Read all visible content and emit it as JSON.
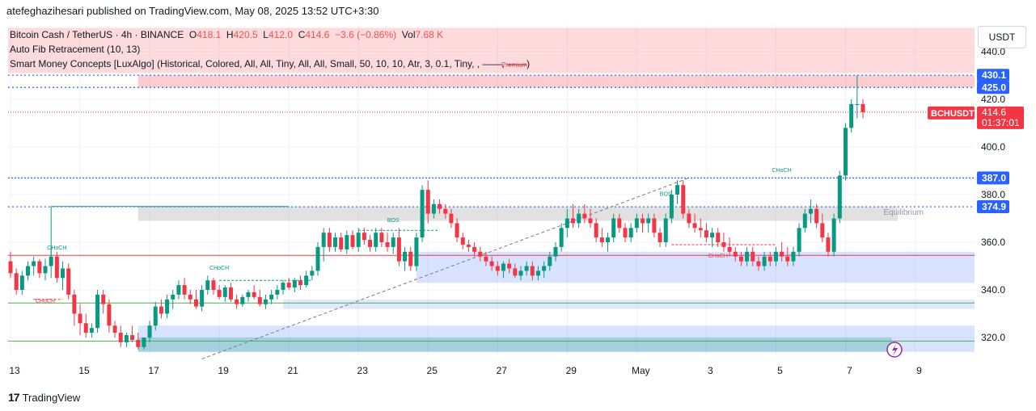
{
  "header": {
    "publisher_line": "atefeghazihesari published on TradingView.com, May 08, 2025 13:52 UTC+3:30"
  },
  "legend": {
    "symbol": "Bitcoin Cash / TetherUS · 4h · BINANCE",
    "o_label": "O",
    "o_value": "418.1",
    "h_label": "H",
    "h_value": "420.5",
    "l_label": "L",
    "l_value": "412.0",
    "c_label": "C",
    "c_value": "414.6",
    "change": "−3.6 (−0.86%)",
    "vol_label": "Vol",
    "vol_value": "7.68 K",
    "indicator1": "Auto Fib Retracement (10, 13)",
    "indicator2": "Smart Money Concepts [LuxAlgo] (Historical, Colored, All, All, Tiny, All, All, Small, 50, 10, 10, Atr, 3, 0.1, Tiny, ",
    "indicator2_tail": ", ——, ——)",
    "indicator2_overlay": "Premium"
  },
  "currency_button": "USDT",
  "footer": {
    "brand": "TradingView",
    "logo_glyph": "17"
  },
  "colors": {
    "up": "#089981",
    "down": "#f23645",
    "blue": "#2962ff",
    "premium": "rgba(242,54,69,0.18)",
    "discount": "rgba(8,153,129,0.25)"
  },
  "chart_data": {
    "type": "candlestick",
    "symbol": "BCHUSDT",
    "interval": "4h",
    "ylim": [
      310,
      450
    ],
    "y_ticks": [
      320,
      340,
      360,
      380,
      400,
      420,
      440
    ],
    "y_tick_labels": [
      "320.0",
      "340.0",
      "360.0",
      "380.0",
      "400.0",
      "420.0",
      "440.0"
    ],
    "x_ticks": [
      {
        "label": "13",
        "idx": 0
      },
      {
        "label": "15",
        "idx": 12
      },
      {
        "label": "17",
        "idx": 24
      },
      {
        "label": "19",
        "idx": 36
      },
      {
        "label": "21",
        "idx": 48
      },
      {
        "label": "23",
        "idx": 60
      },
      {
        "label": "25",
        "idx": 72
      },
      {
        "label": "27",
        "idx": 84
      },
      {
        "label": "29",
        "idx": 96
      },
      {
        "label": "May",
        "idx": 108
      },
      {
        "label": "3",
        "idx": 120
      },
      {
        "label": "5",
        "idx": 132
      },
      {
        "label": "7",
        "idx": 144
      },
      {
        "label": "9",
        "idx": 156
      }
    ],
    "price_labels": [
      {
        "value": 430.1,
        "text": "430.1",
        "kind": "blue"
      },
      {
        "value": 425.0,
        "text": "425.0",
        "kind": "blue"
      },
      {
        "value": 414.6,
        "text": "414.6",
        "kind": "red",
        "countdown": "01:37:01",
        "tag": "BCHUSDT"
      },
      {
        "value": 387.0,
        "text": "387.0",
        "kind": "blue"
      },
      {
        "value": 374.9,
        "text": "374.9",
        "kind": "blue"
      }
    ],
    "annotations": [
      {
        "text": "CHoCH",
        "idx": 8,
        "price": 357,
        "kind": "up"
      },
      {
        "text": "CHoCH",
        "idx": 36,
        "price": 348.5,
        "kind": "up"
      },
      {
        "text": "BOS",
        "idx": 66,
        "price": 368.5,
        "kind": "up"
      },
      {
        "text": "BOS",
        "idx": 113,
        "price": 379.5,
        "kind": "up"
      },
      {
        "text": "CHoCH",
        "idx": 133,
        "price": 389.5,
        "kind": "up"
      },
      {
        "text": "CHoCH",
        "idx": 6,
        "price": 334.5,
        "kind": "down"
      },
      {
        "text": "CHoCH",
        "idx": 122,
        "price": 353.5,
        "kind": "down"
      },
      {
        "text": "Equilibrium",
        "idx": 154,
        "price": 371.5,
        "kind": "gray"
      }
    ],
    "ohlc": [
      [
        352,
        356,
        345,
        347
      ],
      [
        347,
        349,
        338,
        340
      ],
      [
        340,
        348,
        338,
        346
      ],
      [
        346,
        352,
        344,
        350
      ],
      [
        350,
        354,
        346,
        352
      ],
      [
        352,
        353,
        345,
        347
      ],
      [
        347,
        353,
        344,
        350
      ],
      [
        350,
        358,
        345,
        354
      ],
      [
        354,
        356,
        343,
        345
      ],
      [
        345,
        352,
        340,
        349
      ],
      [
        349,
        351,
        336,
        338
      ],
      [
        338,
        340,
        325,
        330
      ],
      [
        330,
        334,
        321,
        326
      ],
      [
        326,
        330,
        320,
        322
      ],
      [
        322,
        326,
        320,
        324
      ],
      [
        324,
        340,
        322,
        338
      ],
      [
        338,
        340,
        330,
        334
      ],
      [
        334,
        336,
        322,
        325
      ],
      [
        325,
        327,
        320,
        322
      ],
      [
        322,
        325,
        316,
        318
      ],
      [
        318,
        322,
        316,
        321
      ],
      [
        321,
        325,
        318,
        319
      ],
      [
        319,
        322,
        315,
        316
      ],
      [
        316,
        320,
        315,
        320
      ],
      [
        320,
        327,
        318,
        325
      ],
      [
        325,
        335,
        323,
        333
      ],
      [
        333,
        336,
        328,
        330
      ],
      [
        330,
        338,
        328,
        336
      ],
      [
        336,
        340,
        332,
        338
      ],
      [
        338,
        344,
        336,
        342
      ],
      [
        342,
        345,
        336,
        338
      ],
      [
        338,
        340,
        334,
        336
      ],
      [
        336,
        340,
        332,
        333
      ],
      [
        333,
        342,
        331,
        340
      ],
      [
        340,
        346,
        338,
        344
      ],
      [
        344,
        345,
        338,
        340
      ],
      [
        340,
        342,
        336,
        337
      ],
      [
        337,
        342,
        335,
        341
      ],
      [
        341,
        343,
        335,
        336
      ],
      [
        336,
        338,
        332,
        334
      ],
      [
        334,
        338,
        333,
        337
      ],
      [
        337,
        340,
        335,
        339
      ],
      [
        339,
        342,
        336,
        337
      ],
      [
        337,
        340,
        333,
        334
      ],
      [
        334,
        338,
        332,
        336
      ],
      [
        336,
        340,
        334,
        338
      ],
      [
        338,
        342,
        336,
        340
      ],
      [
        340,
        344,
        338,
        343
      ],
      [
        343,
        345,
        340,
        341
      ],
      [
        341,
        345,
        339,
        344
      ],
      [
        344,
        346,
        340,
        342
      ],
      [
        342,
        348,
        341,
        346
      ],
      [
        346,
        350,
        344,
        348
      ],
      [
        348,
        360,
        346,
        358
      ],
      [
        358,
        366,
        352,
        364
      ],
      [
        364,
        366,
        356,
        358
      ],
      [
        358,
        364,
        356,
        362
      ],
      [
        362,
        364,
        356,
        357
      ],
      [
        357,
        365,
        355,
        363
      ],
      [
        363,
        365,
        357,
        358
      ],
      [
        358,
        366,
        356,
        364
      ],
      [
        364,
        366,
        359,
        361
      ],
      [
        361,
        363,
        356,
        358
      ],
      [
        358,
        366,
        356,
        364
      ],
      [
        364,
        366,
        358,
        360
      ],
      [
        360,
        364,
        356,
        358
      ],
      [
        358,
        364,
        355,
        362
      ],
      [
        362,
        366,
        350,
        352
      ],
      [
        352,
        358,
        348,
        356
      ],
      [
        356,
        358,
        348,
        350
      ],
      [
        350,
        364,
        348,
        362
      ],
      [
        362,
        384,
        360,
        382
      ],
      [
        382,
        386,
        368,
        372
      ],
      [
        372,
        378,
        370,
        376
      ],
      [
        376,
        378,
        372,
        374
      ],
      [
        374,
        376,
        370,
        372
      ],
      [
        372,
        374,
        366,
        368
      ],
      [
        368,
        370,
        360,
        362
      ],
      [
        362,
        364,
        357,
        359
      ],
      [
        359,
        361,
        356,
        358
      ],
      [
        358,
        360,
        354,
        356
      ],
      [
        356,
        358,
        352,
        354
      ],
      [
        354,
        356,
        350,
        352
      ],
      [
        352,
        354,
        348,
        350
      ],
      [
        350,
        352,
        346,
        348
      ],
      [
        348,
        352,
        345,
        351
      ],
      [
        351,
        353,
        347,
        349
      ],
      [
        349,
        351,
        345,
        346
      ],
      [
        346,
        350,
        344,
        348
      ],
      [
        348,
        352,
        346,
        350
      ],
      [
        350,
        352,
        344,
        346
      ],
      [
        346,
        350,
        344,
        348
      ],
      [
        348,
        352,
        345,
        350
      ],
      [
        350,
        356,
        348,
        354
      ],
      [
        354,
        360,
        352,
        358
      ],
      [
        358,
        368,
        356,
        366
      ],
      [
        366,
        374,
        362,
        370
      ],
      [
        370,
        376,
        366,
        368
      ],
      [
        368,
        374,
        366,
        372
      ],
      [
        372,
        376,
        368,
        370
      ],
      [
        370,
        374,
        366,
        368
      ],
      [
        368,
        370,
        360,
        362
      ],
      [
        362,
        366,
        358,
        360
      ],
      [
        360,
        364,
        356,
        362
      ],
      [
        362,
        372,
        360,
        370
      ],
      [
        370,
        372,
        364,
        366
      ],
      [
        366,
        368,
        360,
        362
      ],
      [
        362,
        368,
        360,
        366
      ],
      [
        366,
        372,
        364,
        370
      ],
      [
        370,
        372,
        364,
        368
      ],
      [
        368,
        372,
        364,
        370
      ],
      [
        370,
        372,
        362,
        364
      ],
      [
        364,
        366,
        358,
        360
      ],
      [
        360,
        372,
        358,
        370
      ],
      [
        370,
        382,
        368,
        380
      ],
      [
        380,
        386,
        376,
        384
      ],
      [
        384,
        386,
        370,
        372
      ],
      [
        372,
        374,
        366,
        368
      ],
      [
        368,
        372,
        364,
        366
      ],
      [
        366,
        370,
        362,
        365
      ],
      [
        365,
        368,
        360,
        362
      ],
      [
        362,
        366,
        358,
        364
      ],
      [
        364,
        366,
        358,
        360
      ],
      [
        360,
        364,
        356,
        358
      ],
      [
        358,
        362,
        354,
        356
      ],
      [
        356,
        358,
        352,
        354
      ],
      [
        354,
        356,
        350,
        352
      ],
      [
        352,
        358,
        350,
        356
      ],
      [
        356,
        358,
        350,
        352
      ],
      [
        352,
        354,
        348,
        350
      ],
      [
        350,
        356,
        348,
        354
      ],
      [
        354,
        356,
        350,
        352
      ],
      [
        352,
        358,
        350,
        356
      ],
      [
        356,
        360,
        352,
        354
      ],
      [
        354,
        358,
        350,
        352
      ],
      [
        352,
        358,
        350,
        356
      ],
      [
        356,
        368,
        354,
        366
      ],
      [
        366,
        374,
        364,
        372
      ],
      [
        372,
        378,
        368,
        374
      ],
      [
        374,
        376,
        366,
        368
      ],
      [
        368,
        372,
        360,
        362
      ],
      [
        362,
        364,
        354,
        356
      ],
      [
        356,
        372,
        354,
        370
      ],
      [
        370,
        390,
        368,
        388
      ],
      [
        388,
        410,
        386,
        408
      ],
      [
        408,
        420,
        406,
        418
      ],
      [
        418,
        430,
        412,
        418
      ],
      [
        418,
        420,
        412,
        414.6
      ]
    ]
  }
}
